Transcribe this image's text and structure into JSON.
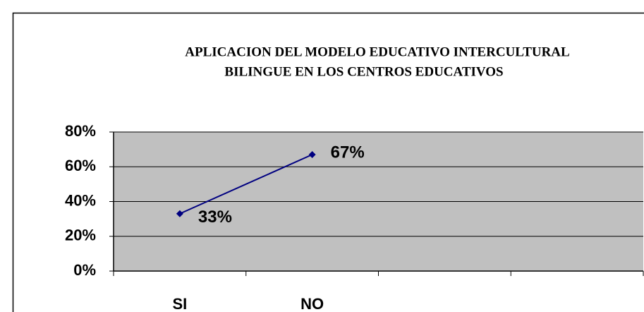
{
  "chart_data": {
    "type": "line",
    "title": [
      "APLICACION DEL MODELO EDUCATIVO INTERCULTURAL",
      "BILINGUE EN LOS CENTROS EDUCATIVOS"
    ],
    "categories": [
      "SI",
      "NO",
      null,
      null
    ],
    "series": [
      {
        "name": null,
        "color": "#000080",
        "values": [
          33,
          67,
          null,
          null
        ],
        "value_labels": [
          "33%",
          "67%",
          null,
          null
        ]
      }
    ],
    "ylim": [
      0,
      80
    ],
    "yticks": [
      {
        "value": 0,
        "label": "0%"
      },
      {
        "value": 20,
        "label": "20%"
      },
      {
        "value": 40,
        "label": "40%"
      },
      {
        "value": 60,
        "label": "60%"
      },
      {
        "value": 80,
        "label": "80%"
      }
    ],
    "grid": true,
    "plot_background": "#c0c0c0"
  }
}
